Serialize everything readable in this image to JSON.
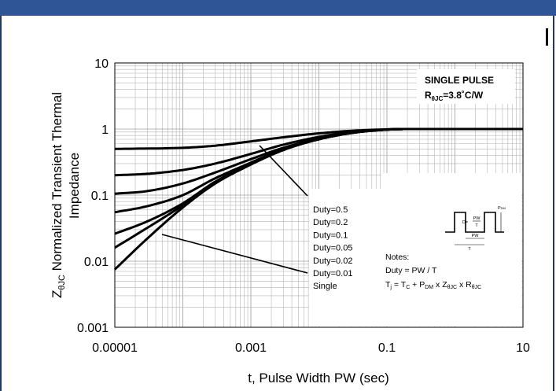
{
  "chart_data": {
    "type": "line",
    "xscale": "log",
    "yscale": "log",
    "xlim": [
      1e-05,
      10
    ],
    "ylim": [
      0.001,
      10
    ],
    "grid": true,
    "xlabel": "t, Pulse Width PW (sec)",
    "ylabel_main": "Normalized Transient Thermal",
    "ylabel_line2": "Impedance",
    "ylabel_symbol_base": "Z",
    "ylabel_symbol_sub": "θJC",
    "x_ticks": [
      {
        "value": 1e-05,
        "label": "0.00001"
      },
      {
        "value": 0.001,
        "label": "0.001"
      },
      {
        "value": 0.1,
        "label": "0.1"
      },
      {
        "value": 10,
        "label": "10"
      }
    ],
    "y_ticks": [
      {
        "value": 10,
        "label": "10"
      },
      {
        "value": 1,
        "label": "1"
      },
      {
        "value": 0.1,
        "label": "0.1"
      },
      {
        "value": 0.01,
        "label": "0.01"
      },
      {
        "value": 0.001,
        "label": "0.001"
      }
    ],
    "info_box": {
      "line1": "SINGLE PULSE",
      "r_base": "R",
      "r_sub": "θJC",
      "r_value": "=3.8˚C/W"
    },
    "series": [
      {
        "name": "Duty=0.5",
        "x": [
          1e-05,
          0.0001,
          0.0003,
          0.001,
          0.003,
          0.01,
          0.03,
          0.1,
          0.2,
          1,
          10
        ],
        "y": [
          0.5,
          0.52,
          0.56,
          0.65,
          0.75,
          0.86,
          0.94,
          0.99,
          1.0,
          1.0,
          1.0
        ]
      },
      {
        "name": "Duty=0.2",
        "x": [
          1e-05,
          3e-05,
          0.0001,
          0.0003,
          0.001,
          0.003,
          0.01,
          0.03,
          0.1,
          0.2,
          1,
          10
        ],
        "y": [
          0.2,
          0.21,
          0.24,
          0.3,
          0.42,
          0.58,
          0.76,
          0.9,
          0.98,
          1.0,
          1.0,
          1.0
        ]
      },
      {
        "name": "Duty=0.1",
        "x": [
          1e-05,
          3e-05,
          0.0001,
          0.0003,
          0.001,
          0.003,
          0.01,
          0.03,
          0.1,
          0.2,
          1,
          10
        ],
        "y": [
          0.105,
          0.115,
          0.15,
          0.22,
          0.35,
          0.52,
          0.72,
          0.88,
          0.98,
          1.0,
          1.0,
          1.0
        ]
      },
      {
        "name": "Duty=0.05",
        "x": [
          1e-05,
          3e-05,
          0.0001,
          0.0003,
          0.001,
          0.003,
          0.01,
          0.03,
          0.1,
          0.2,
          1,
          10
        ],
        "y": [
          0.055,
          0.068,
          0.1,
          0.18,
          0.31,
          0.5,
          0.71,
          0.88,
          0.98,
          1.0,
          1.0,
          1.0
        ]
      },
      {
        "name": "Duty=0.02",
        "x": [
          1e-05,
          3e-05,
          0.0001,
          0.0003,
          0.001,
          0.003,
          0.01,
          0.03,
          0.1,
          0.2,
          1,
          10
        ],
        "y": [
          0.026,
          0.04,
          0.075,
          0.16,
          0.3,
          0.49,
          0.7,
          0.87,
          0.98,
          1.0,
          1.0,
          1.0
        ]
      },
      {
        "name": "Duty=0.01",
        "x": [
          1e-05,
          3e-05,
          0.0001,
          0.0003,
          0.001,
          0.003,
          0.01,
          0.03,
          0.1,
          0.2,
          1,
          10
        ],
        "y": [
          0.016,
          0.032,
          0.07,
          0.155,
          0.3,
          0.49,
          0.7,
          0.87,
          0.98,
          1.0,
          1.0,
          1.0
        ]
      },
      {
        "name": "Single",
        "x": [
          1e-05,
          3e-05,
          0.0001,
          0.0003,
          0.001,
          0.003,
          0.01,
          0.03,
          0.1,
          0.2,
          1,
          10
        ],
        "y": [
          0.0075,
          0.022,
          0.065,
          0.15,
          0.29,
          0.48,
          0.7,
          0.87,
          0.98,
          1.0,
          1.0,
          1.0
        ]
      }
    ],
    "legend_labels": [
      "Duty=0.5",
      "Duty=0.2",
      "Duty=0.1",
      "Duty=0.05",
      "Duty=0.02",
      "Duty=0.01",
      "Single"
    ],
    "notes": {
      "title": "Notes:",
      "line1": "Duty = PW / T",
      "line2_a": "T",
      "line2_a_sub": "j",
      "line2_b": " = T",
      "line2_b_sub": "C",
      "line2_c": " + P",
      "line2_c_sub": "DM",
      "line2_d": " x Z",
      "line2_d_sub": "θJC",
      "line2_e": " x R",
      "line2_e_sub": "θJC"
    },
    "waveform": {
      "pw_label": "PW",
      "t_label": "T",
      "pdm_label": "P",
      "pdm_sub": "DM",
      "d_label": "D="
    }
  }
}
